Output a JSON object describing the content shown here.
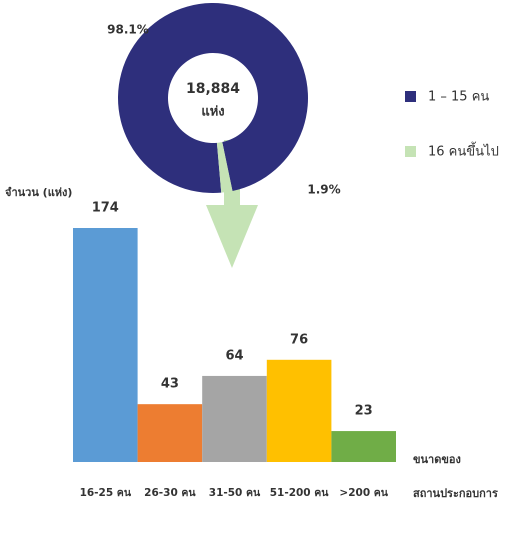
{
  "chart_data": [
    {
      "type": "pie",
      "center_label": "18,884",
      "center_unit": "แห่ง",
      "categories": [
        "1 – 15 คน",
        "16 คนขึ้นไป"
      ],
      "values": [
        98.1,
        1.9
      ],
      "value_labels": [
        "98.1%",
        "1.9%"
      ],
      "colors": [
        "#2e2f7c",
        "#c5e3b5"
      ]
    },
    {
      "type": "bar",
      "y_label": "จำนวน (แห่ง)",
      "x_label": [
        "ขนาดของ",
        "สถานประกอบการ"
      ],
      "categories": [
        "16-25 คน",
        "26-30 คน",
        "31-50 คน",
        "51-200 คน",
        ">200 คน"
      ],
      "values": [
        174,
        43,
        64,
        76,
        23
      ],
      "colors": [
        "#5b9bd5",
        "#ed7d31",
        "#a5a5a5",
        "#ffc000",
        "#70ad47"
      ]
    }
  ]
}
